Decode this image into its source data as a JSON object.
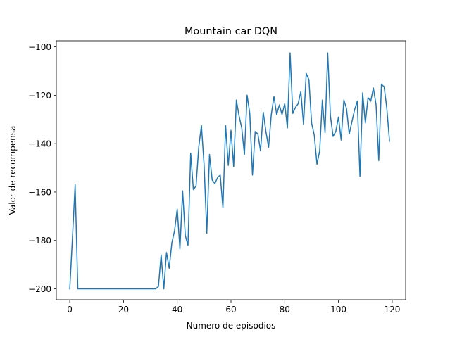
{
  "chart_data": {
    "type": "line",
    "title": "Mountain car DQN",
    "xlabel": "Numero de episodios",
    "ylabel": "Valor de recompensa",
    "xlim": [
      -5,
      125
    ],
    "ylim": [
      -204.5,
      -97.5
    ],
    "xticks": [
      0,
      20,
      40,
      60,
      80,
      100,
      120
    ],
    "yticks": [
      -200,
      -180,
      -160,
      -140,
      -120,
      -100
    ],
    "xtick_labels": [
      "0",
      "20",
      "40",
      "60",
      "80",
      "100",
      "120"
    ],
    "ytick_labels": [
      "−200",
      "−180",
      "−160",
      "−140",
      "−120",
      "−100"
    ],
    "grid": false,
    "line_color": "#1f77b4",
    "series": [
      {
        "x": [
          0,
          1,
          2,
          3,
          4,
          5,
          6,
          7,
          8,
          9,
          10,
          11,
          12,
          13,
          14,
          15,
          16,
          17,
          18,
          19,
          20,
          21,
          22,
          23,
          24,
          25,
          26,
          27,
          28,
          29,
          30,
          31,
          32,
          33,
          34,
          35,
          36,
          37,
          38,
          39,
          40,
          41,
          42,
          43,
          44,
          45,
          46,
          47,
          48,
          49,
          50,
          51,
          52,
          53,
          54,
          55,
          56,
          57,
          58,
          59,
          60,
          61,
          62,
          63,
          64,
          65,
          66,
          67,
          68,
          69,
          70,
          71,
          72,
          73,
          74,
          75,
          76,
          77,
          78,
          79,
          80,
          81,
          82,
          83,
          84,
          85,
          86,
          87,
          88,
          89,
          90,
          91,
          92,
          93,
          94,
          95,
          96,
          97,
          98,
          99,
          100,
          101,
          102,
          103,
          104,
          105,
          106,
          107,
          108,
          109,
          110,
          111,
          112,
          113,
          114,
          115,
          116,
          117,
          118,
          119
        ],
        "values": [
          -200,
          -179,
          -157,
          -200,
          -200,
          -200,
          -200,
          -200,
          -200,
          -200,
          -200,
          -200,
          -200,
          -200,
          -200,
          -200,
          -200,
          -200,
          -200,
          -200,
          -200,
          -200,
          -200,
          -200,
          -200,
          -200,
          -200,
          -200,
          -200,
          -200,
          -200,
          -200,
          -200,
          -199,
          -186,
          -200,
          -185,
          -191.5,
          -181,
          -176,
          -167,
          -183.5,
          -159.5,
          -178,
          -182,
          -144,
          -159,
          -157.5,
          -141.5,
          -132.5,
          -149,
          -177,
          -144.5,
          -155,
          -156.5,
          -154,
          -153,
          -166.5,
          -132.5,
          -149,
          -134.5,
          -149.5,
          -122,
          -128.5,
          -133.5,
          -144.5,
          -120,
          -127.5,
          -153,
          -135,
          -136,
          -143,
          -127,
          -135,
          -141.5,
          -128,
          -120.5,
          -128,
          -124,
          -128,
          -123.5,
          -133.5,
          -102.5,
          -127.5,
          -125,
          -123.5,
          -118.5,
          -132,
          -111,
          -113.5,
          -131.5,
          -136.5,
          -148.5,
          -143,
          -122,
          -135.5,
          -102.5,
          -128.5,
          -137,
          -135,
          -129,
          -138.5,
          -122,
          -125.5,
          -136,
          -131,
          -126,
          -122.5,
          -153.5,
          -119,
          -131.5,
          -121,
          -122.5,
          -117,
          -124,
          -147,
          -115.5,
          -116.5,
          -125.5,
          -139
        ]
      }
    ]
  }
}
